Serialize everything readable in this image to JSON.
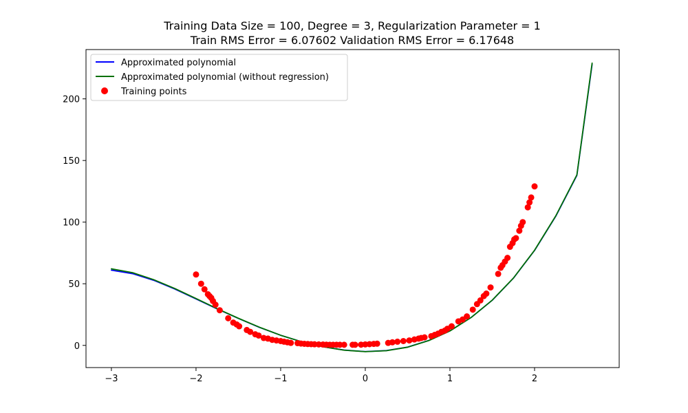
{
  "chart_data": {
    "type": "line",
    "title": "Training Data Size = 100, Degree = 3, Regularization Parameter = 1",
    "subtitle": "Train RMS Error = 6.07602 Validation RMS Error = 6.17648",
    "xlabel": "",
    "ylabel": "",
    "xlim": [
      -3.3,
      3.0
    ],
    "ylim": [
      -18,
      240
    ],
    "xticks": [
      -3,
      -2,
      -1,
      0,
      1,
      2
    ],
    "xtick_labels": [
      "−3",
      "−2",
      "−1",
      "0",
      "1",
      "2"
    ],
    "yticks": [
      0,
      50,
      100,
      150,
      200
    ],
    "ytick_labels": [
      "0",
      "50",
      "100",
      "150",
      "200"
    ],
    "grid": false,
    "legend_position": "top-left",
    "series": [
      {
        "name": "Approximated polynomial",
        "kind": "line",
        "color": "#0000ff",
        "x": [
          -3.0,
          -2.75,
          -2.5,
          -2.25,
          -2.0,
          -1.75,
          -1.5,
          -1.25,
          -1.0,
          -0.75,
          -0.5,
          -0.25,
          0.0,
          0.25,
          0.5,
          0.75,
          1.0,
          1.25,
          1.5,
          1.75,
          2.0,
          2.25,
          2.5,
          2.68
        ],
        "y": [
          61.0,
          58.2,
          52.8,
          45.7,
          37.7,
          29.6,
          21.9,
          14.6,
          8.2,
          2.9,
          -1.1,
          -3.8,
          -5.0,
          -4.2,
          -1.4,
          4.0,
          11.8,
          22.6,
          36.6,
          54.5,
          77.0,
          104.7,
          137.9,
          228.0
        ]
      },
      {
        "name": "Approximated polynomial (without regression)",
        "kind": "line",
        "color": "#007000",
        "x": [
          -3.0,
          -2.75,
          -2.5,
          -2.25,
          -2.0,
          -1.75,
          -1.5,
          -1.25,
          -1.0,
          -0.75,
          -0.5,
          -0.25,
          0.0,
          0.25,
          0.5,
          0.75,
          1.0,
          1.25,
          1.5,
          1.75,
          2.0,
          2.25,
          2.5,
          2.68
        ],
        "y": [
          62.1,
          59.0,
          53.3,
          46.1,
          38.0,
          29.8,
          22.0,
          14.7,
          8.2,
          2.9,
          -1.1,
          -3.9,
          -5.1,
          -4.3,
          -1.5,
          3.9,
          11.7,
          22.6,
          36.7,
          54.6,
          77.2,
          105.0,
          138.3,
          229.0
        ]
      },
      {
        "name": "Training points",
        "kind": "scatter",
        "color": "#ff0000",
        "x": [
          -2.0,
          -1.94,
          -1.9,
          -1.86,
          -1.84,
          -1.82,
          -1.8,
          -1.77,
          -1.72,
          -1.62,
          -1.56,
          -1.52,
          -1.49,
          -1.4,
          -1.36,
          -1.3,
          -1.26,
          -1.2,
          -1.15,
          -1.1,
          -1.05,
          -1.0,
          -0.96,
          -0.92,
          -0.88,
          -0.8,
          -0.76,
          -0.72,
          -0.68,
          -0.64,
          -0.6,
          -0.55,
          -0.5,
          -0.46,
          -0.42,
          -0.38,
          -0.34,
          -0.3,
          -0.25,
          -0.15,
          -0.12,
          -0.05,
          0.0,
          0.05,
          0.1,
          0.14,
          0.27,
          0.32,
          0.38,
          0.45,
          0.52,
          0.58,
          0.63,
          0.66,
          0.7,
          0.78,
          0.82,
          0.86,
          0.9,
          0.94,
          0.97,
          1.02,
          1.1,
          1.15,
          1.2,
          1.27,
          1.32,
          1.36,
          1.4,
          1.43,
          1.48,
          1.57,
          1.6,
          1.62,
          1.65,
          1.68,
          1.71,
          1.74,
          1.76,
          1.78,
          1.82,
          1.84,
          1.86,
          1.92,
          1.94,
          1.96,
          2.0
        ],
        "y": [
          57.5,
          50.0,
          45.5,
          41.5,
          40.0,
          38.5,
          36.0,
          33.0,
          28.5,
          22.0,
          18.5,
          17.0,
          15.5,
          12.5,
          11.0,
          9.0,
          8.0,
          6.0,
          5.5,
          4.5,
          4.0,
          3.5,
          3.0,
          2.5,
          2.0,
          1.8,
          1.5,
          1.3,
          1.1,
          1.0,
          0.9,
          0.8,
          0.7,
          0.6,
          0.5,
          0.5,
          0.5,
          0.5,
          0.5,
          0.5,
          0.5,
          0.6,
          0.8,
          1.0,
          1.2,
          1.4,
          2.0,
          2.5,
          3.0,
          3.5,
          4.0,
          4.8,
          5.5,
          6.0,
          6.5,
          7.5,
          8.5,
          9.5,
          11.0,
          12.0,
          13.5,
          15.5,
          19.5,
          21.0,
          23.5,
          29.0,
          33.5,
          36.5,
          40.0,
          42.0,
          47.0,
          58.0,
          63.0,
          65.0,
          68.0,
          71.0,
          80.0,
          83.0,
          86.0,
          87.0,
          93.0,
          97.0,
          100.0,
          112.0,
          116.0,
          120.0,
          129.0
        ]
      }
    ]
  }
}
